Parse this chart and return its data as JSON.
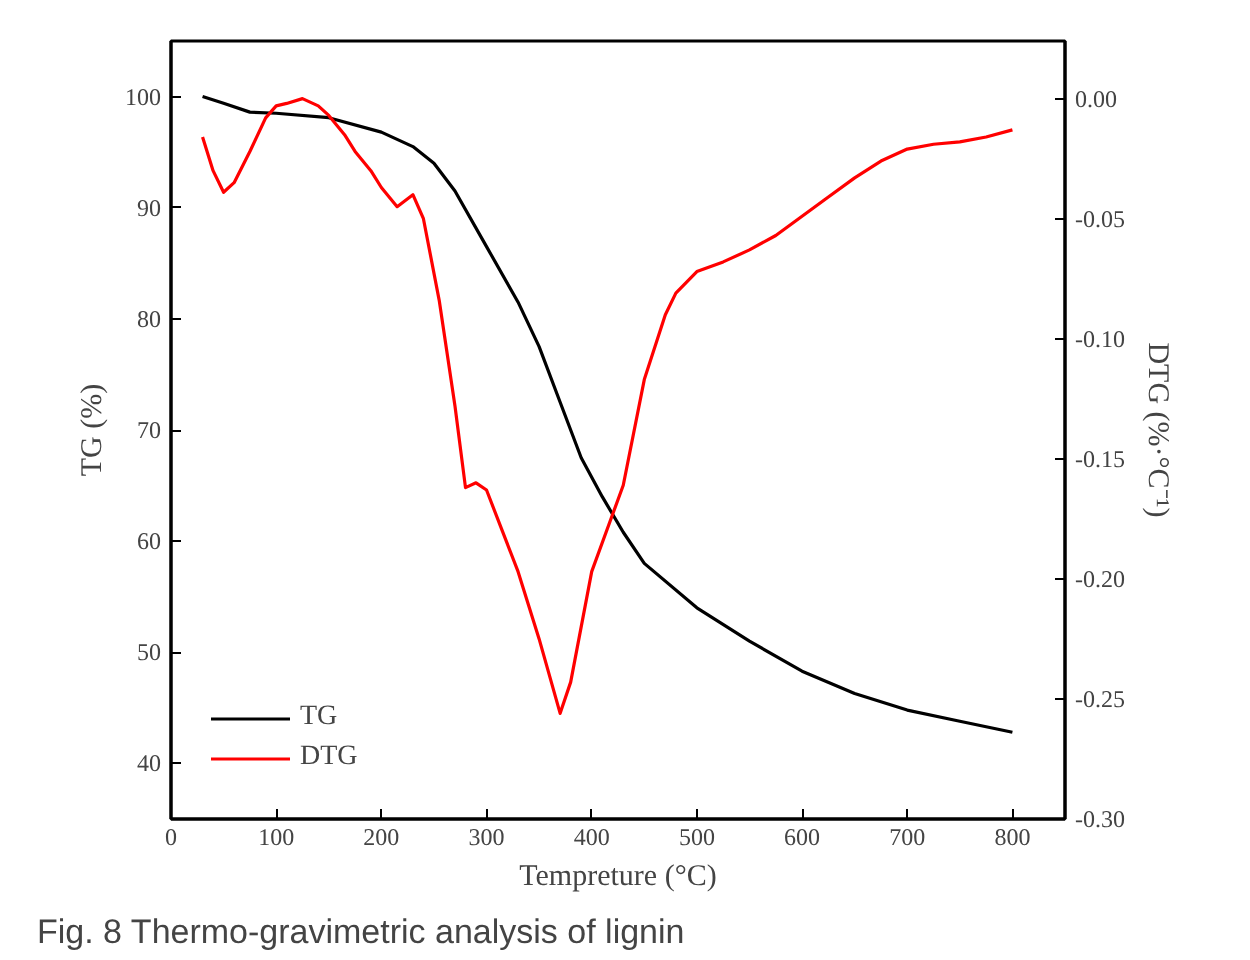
{
  "chart_data": {
    "type": "line",
    "xlabel": "Tempreture (°C)",
    "ylabel": "TG (%)",
    "y2label": "DTG (%·°C⁻¹)",
    "annotations": [
      "Fig. 8  Thermo-gravimetric analysis of lignin"
    ],
    "xlim": [
      0,
      850
    ],
    "xticks": [
      0,
      100,
      200,
      300,
      400,
      500,
      600,
      700,
      800
    ],
    "ylim": [
      35,
      105
    ],
    "yticks": [
      40,
      50,
      60,
      70,
      80,
      90,
      100
    ],
    "y2lim": [
      -0.3,
      0.024
    ],
    "y2ticks": [
      {
        "value": 0,
        "label": "0.00"
      },
      {
        "value": -0.05,
        "label": "-0.05"
      },
      {
        "value": -0.1,
        "label": "-0.10"
      },
      {
        "value": -0.15,
        "label": "-0.15"
      },
      {
        "value": -0.2,
        "label": "-0.20"
      },
      {
        "value": -0.25,
        "label": "-0.25"
      },
      {
        "value": -0.3,
        "label": "-0.30"
      }
    ],
    "grid": false,
    "legend": "bottom left",
    "line_style": "solid",
    "marker": "none",
    "series": [
      {
        "name": "TG",
        "color": "#000000",
        "x": [
          30,
          50,
          75,
          100,
          150,
          200,
          230,
          250,
          270,
          300,
          330,
          350,
          370,
          390,
          410,
          430,
          450,
          500,
          550,
          600,
          650,
          700,
          750,
          800
        ],
        "values": [
          100,
          99.4,
          98.6,
          98.5,
          98.1,
          96.8,
          95.5,
          94.0,
          91.5,
          86.5,
          81.5,
          77.5,
          72.5,
          67.5,
          64,
          60.8,
          58,
          54,
          51,
          48.3,
          46.3,
          44.8,
          43.8,
          42.8
        ]
      },
      {
        "name": "DTG",
        "color": "#ff0000",
        "axis": "y2",
        "x": [
          30,
          40,
          50,
          60,
          75,
          90,
          100,
          110,
          125,
          140,
          150,
          165,
          175,
          190,
          200,
          215,
          230,
          240,
          255,
          270,
          280,
          290,
          300,
          315,
          330,
          350,
          370,
          380,
          400,
          420,
          430,
          450,
          470,
          480,
          500,
          525,
          550,
          575,
          600,
          625,
          650,
          675,
          700,
          725,
          750,
          775,
          800
        ],
        "values": [
          -0.016,
          -0.03,
          -0.039,
          -0.035,
          -0.022,
          -0.008,
          -0.003,
          -0.002,
          0.0,
          -0.003,
          -0.007,
          -0.015,
          -0.022,
          -0.03,
          -0.037,
          -0.045,
          -0.04,
          -0.05,
          -0.084,
          -0.128,
          -0.162,
          -0.16,
          -0.163,
          -0.18,
          -0.197,
          -0.225,
          -0.256,
          -0.243,
          -0.197,
          -0.173,
          -0.161,
          -0.117,
          -0.09,
          -0.081,
          -0.072,
          -0.068,
          -0.063,
          -0.057,
          -0.049,
          -0.041,
          -0.033,
          -0.026,
          -0.021,
          -0.019,
          -0.018,
          -0.016,
          -0.013
        ]
      }
    ]
  }
}
